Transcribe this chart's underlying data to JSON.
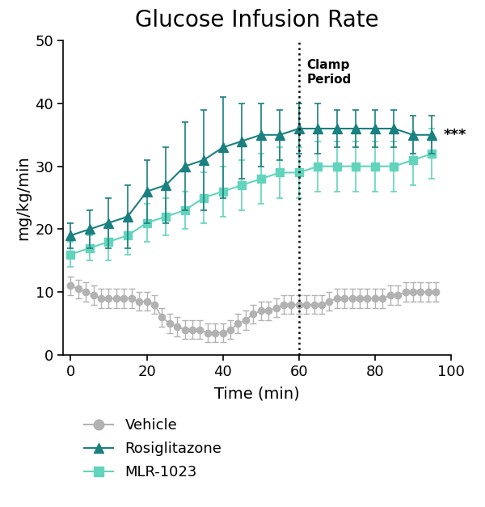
{
  "title": "Glucose Infusion Rate",
  "xlabel": "Time (min)",
  "ylabel": "mg/kg/min",
  "xlim": [
    -2,
    100
  ],
  "ylim": [
    0,
    50
  ],
  "xticks": [
    0,
    20,
    40,
    60,
    80,
    100
  ],
  "yticks": [
    0,
    10,
    20,
    30,
    40,
    50
  ],
  "clamp_line_x": 60,
  "clamp_label": "Clamp\nPeriod",
  "sig_label": "***",
  "vehicle_color": "#b2b2b2",
  "rosiglitazone_color": "#1a8080",
  "mlr_color": "#62d4bc",
  "vehicle_time": [
    0,
    2,
    4,
    6,
    8,
    10,
    12,
    14,
    16,
    18,
    20,
    22,
    24,
    26,
    28,
    30,
    32,
    34,
    36,
    38,
    40,
    42,
    44,
    46,
    48,
    50,
    52,
    54,
    56,
    58,
    60,
    62,
    64,
    66,
    68,
    70,
    72,
    74,
    76,
    78,
    80,
    82,
    84,
    86,
    88,
    90,
    92,
    94,
    96
  ],
  "vehicle_mean": [
    11,
    10.5,
    10,
    9.5,
    9,
    9,
    9,
    9,
    9,
    8.5,
    8.5,
    8,
    6,
    5,
    4.5,
    4,
    4,
    4,
    3.5,
    3.5,
    3.5,
    4,
    5,
    5.5,
    6.5,
    7,
    7,
    7.5,
    8,
    8,
    8,
    8,
    8,
    8,
    8.5,
    9,
    9,
    9,
    9,
    9,
    9,
    9,
    9.5,
    9.5,
    10,
    10,
    10,
    10,
    10
  ],
  "vehicle_err": [
    1.5,
    1.5,
    1.5,
    1.5,
    1.5,
    1.5,
    1.5,
    1.5,
    1.5,
    1.5,
    1.5,
    1.5,
    1.5,
    1.5,
    1.5,
    1.5,
    1.5,
    1.5,
    1.5,
    1.5,
    1.5,
    1.5,
    1.5,
    1.5,
    1.5,
    1.5,
    1.5,
    1.5,
    1.5,
    1.5,
    1.5,
    1.5,
    1.5,
    1.5,
    1.5,
    1.5,
    1.5,
    1.5,
    1.5,
    1.5,
    1.5,
    1.5,
    1.5,
    1.5,
    1.5,
    1.5,
    1.5,
    1.5,
    1.5
  ],
  "rosi_time": [
    0,
    5,
    10,
    15,
    20,
    25,
    30,
    35,
    40,
    45,
    50,
    55,
    60,
    65,
    70,
    75,
    80,
    85,
    90,
    95
  ],
  "rosi_mean": [
    19,
    20,
    21,
    22,
    26,
    27,
    30,
    31,
    33,
    34,
    35,
    35,
    36,
    36,
    36,
    36,
    36,
    36,
    35,
    35
  ],
  "rosi_err": [
    2,
    3,
    4,
    5,
    5,
    6,
    7,
    8,
    8,
    6,
    5,
    4,
    4,
    4,
    3,
    3,
    3,
    3,
    3,
    3
  ],
  "mlr_time": [
    0,
    5,
    10,
    15,
    20,
    25,
    30,
    35,
    40,
    45,
    50,
    55,
    60,
    65,
    70,
    75,
    80,
    85,
    90,
    95
  ],
  "mlr_mean": [
    16,
    17,
    18,
    19,
    21,
    22,
    23,
    25,
    26,
    27,
    28,
    29,
    29,
    30,
    30,
    30,
    30,
    30,
    31,
    32
  ],
  "mlr_err": [
    2,
    2,
    3,
    3,
    3,
    3,
    3,
    4,
    4,
    4,
    4,
    4,
    4,
    4,
    4,
    4,
    4,
    4,
    4,
    4
  ],
  "bg_color": "#ffffff",
  "title_fontsize": 20,
  "label_fontsize": 14,
  "tick_fontsize": 13,
  "legend_fontsize": 13
}
